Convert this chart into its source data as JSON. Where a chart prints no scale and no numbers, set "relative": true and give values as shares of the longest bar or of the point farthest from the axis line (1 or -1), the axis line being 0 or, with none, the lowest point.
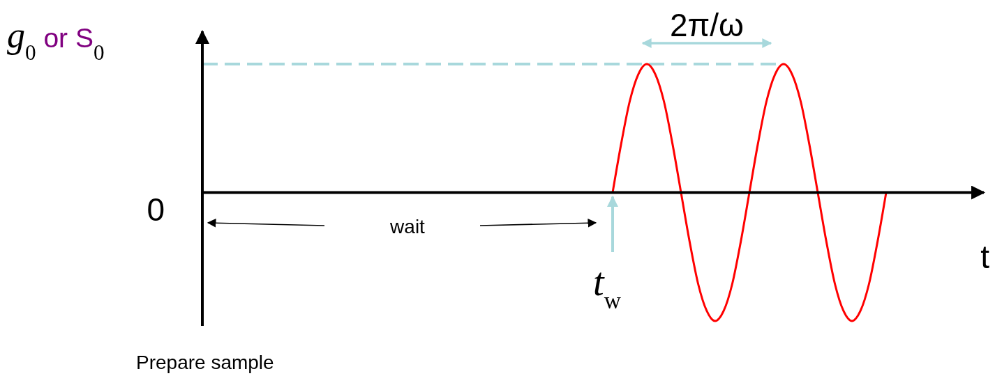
{
  "chart_data": {
    "type": "line",
    "relative": true,
    "ylabel": "g$_{0}$ or S$_{0}$",
    "xlabel": "t",
    "categories": [
      null,
      null,
      null,
      null,
      null,
      null,
      null,
      null,
      null,
      null,
      null,
      null,
      null,
      null,
      null,
      null,
      null,
      null,
      null,
      null,
      null,
      null,
      null,
      null,
      null,
      null,
      null,
      null,
      null,
      null,
      null,
      null,
      null,
      null,
      null,
      null,
      null,
      null,
      null,
      null,
      null,
      null,
      null,
      null,
      null,
      null,
      null,
      null,
      null,
      null,
      null,
      null,
      null,
      null,
      null,
      null,
      null,
      null,
      null,
      null,
      null,
      null,
      null,
      null,
      null,
      null,
      null,
      null,
      null,
      null,
      null,
      null,
      null,
      null,
      null,
      null,
      null,
      null,
      null,
      null,
      null
    ],
    "series": [
      {
        "color": "#ff0000",
        "values": [
          null,
          null,
          null,
          null,
          null,
          null,
          null,
          null,
          null,
          null,
          null,
          null,
          null,
          null,
          null,
          null,
          null,
          null,
          null,
          null,
          null,
          null,
          null,
          null,
          null,
          null,
          null,
          null,
          null,
          null,
          null,
          null,
          null,
          null,
          null,
          null,
          null,
          null,
          null,
          null,
          null,
          null,
          null,
          null,
          null,
          null,
          null,
          null,
          0,
          0.38,
          0.71,
          0.92,
          1,
          0.92,
          0.71,
          0.38,
          0,
          -0.38,
          -0.71,
          -0.92,
          -1,
          -0.92,
          -0.71,
          -0.38,
          0,
          0.38,
          0.71,
          0.92,
          1,
          0.92,
          0.71,
          0.38,
          0,
          -0.38,
          -0.71,
          -0.92,
          -1,
          -0.92,
          -0.71,
          -0.38,
          0
        ]
      }
    ],
    "ref_lines": [
      {
        "axis": "y",
        "value": 1,
        "color": "#a8d8dc",
        "line_style": "dashed"
      }
    ],
    "annotations": [
      "0",
      "wait",
      "t$_{w}$",
      "2π/ω",
      "Prepare sample"
    ]
  }
}
